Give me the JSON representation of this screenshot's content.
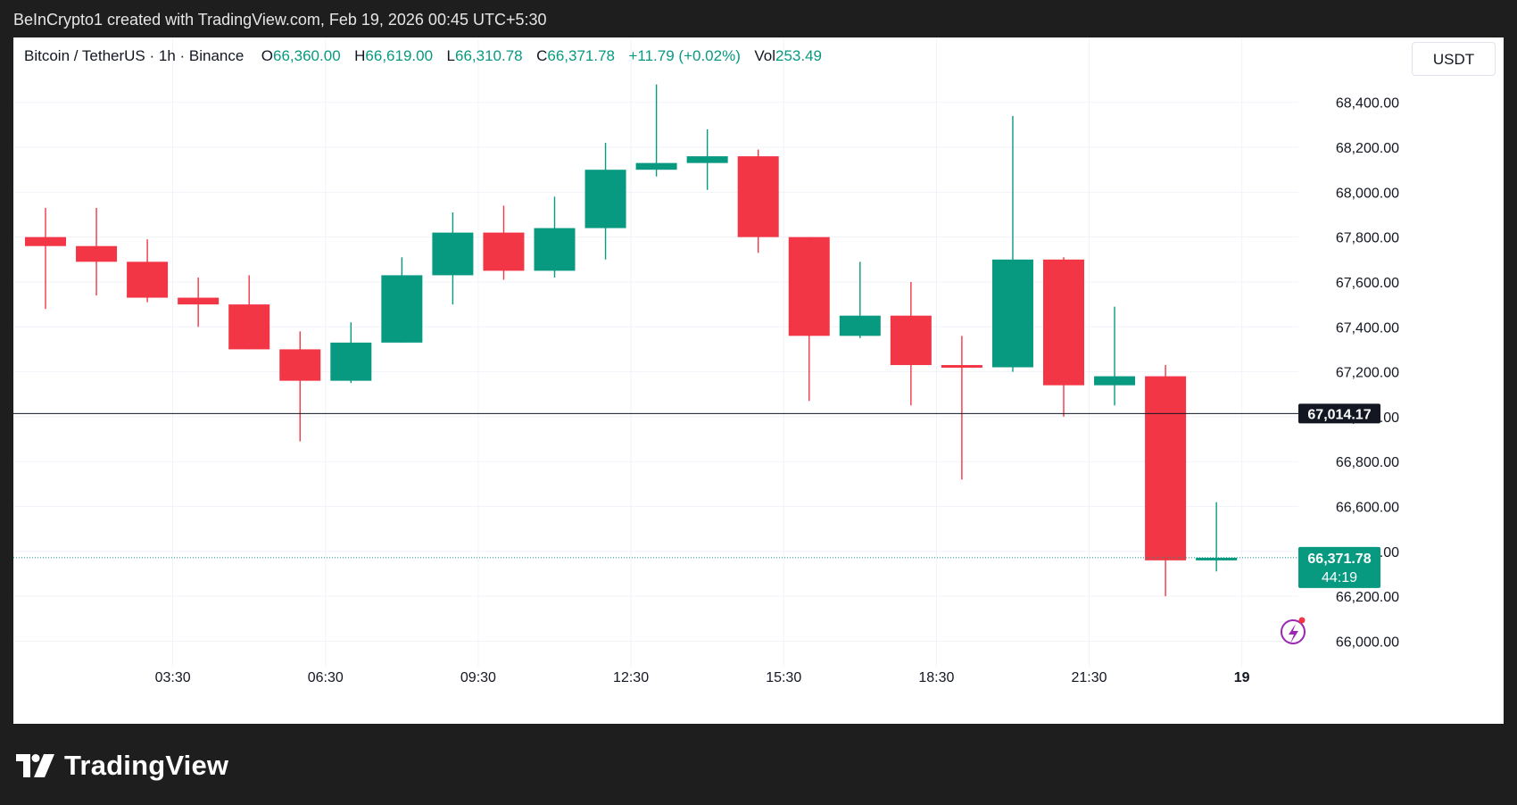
{
  "header": {
    "attribution": "BeInCrypto1 created with TradingView.com, Feb 19, 2026 00:45 UTC+5:30"
  },
  "legend": {
    "symbol": "Bitcoin / TetherUS · 1h · Binance",
    "open_label": "O",
    "open": "66,360.00",
    "high_label": "H",
    "high": "66,619.00",
    "low_label": "L",
    "low": "66,310.78",
    "close_label": "C",
    "close": "66,371.78",
    "change": "+11.79 (+0.02%)",
    "vol_label": "Vol",
    "vol": "253.49"
  },
  "currency": "USDT",
  "footer": {
    "brand": "TradingView"
  },
  "colors": {
    "up": "#089981",
    "down": "#f23645",
    "price_line": "#131722",
    "current_label": "#089981"
  },
  "chart_data": {
    "type": "candlestick",
    "interval": "1h",
    "ylim": [
      65950,
      68550
    ],
    "y_ticks": [
      {
        "value": 66000,
        "label": "66,000.00"
      },
      {
        "value": 66200,
        "label": "66,200.00"
      },
      {
        "value": 66400,
        "label": "66,400.00"
      },
      {
        "value": 66600,
        "label": "66,600.00"
      },
      {
        "value": 66800,
        "label": "66,800.00"
      },
      {
        "value": 67000,
        "label": "67,000.00"
      },
      {
        "value": 67200,
        "label": "67,200.00"
      },
      {
        "value": 67400,
        "label": "67,400.00"
      },
      {
        "value": 67600,
        "label": "67,600.00"
      },
      {
        "value": 67800,
        "label": "67,800.00"
      },
      {
        "value": 68000,
        "label": "68,000.00"
      },
      {
        "value": 68200,
        "label": "68,200.00"
      },
      {
        "value": 68400,
        "label": "68,400.00"
      }
    ],
    "x_ticks": [
      {
        "index": 2.5,
        "label": "03:30"
      },
      {
        "index": 5.5,
        "label": "06:30"
      },
      {
        "index": 8.5,
        "label": "09:30"
      },
      {
        "index": 11.5,
        "label": "12:30"
      },
      {
        "index": 14.5,
        "label": "15:30"
      },
      {
        "index": 17.5,
        "label": "18:30"
      },
      {
        "index": 20.5,
        "label": "21:30"
      },
      {
        "index": 23.5,
        "label": "19"
      }
    ],
    "candles": [
      {
        "o": 67800,
        "h": 67930,
        "l": 67480,
        "c": 67760
      },
      {
        "o": 67760,
        "h": 67930,
        "l": 67540,
        "c": 67690
      },
      {
        "o": 67690,
        "h": 67790,
        "l": 67510,
        "c": 67530
      },
      {
        "o": 67530,
        "h": 67620,
        "l": 67400,
        "c": 67500
      },
      {
        "o": 67500,
        "h": 67630,
        "l": 67300,
        "c": 67300
      },
      {
        "o": 67300,
        "h": 67380,
        "l": 66890,
        "c": 67160
      },
      {
        "o": 67160,
        "h": 67420,
        "l": 67150,
        "c": 67330
      },
      {
        "o": 67330,
        "h": 67710,
        "l": 67330,
        "c": 67630
      },
      {
        "o": 67630,
        "h": 67910,
        "l": 67500,
        "c": 67820
      },
      {
        "o": 67820,
        "h": 67940,
        "l": 67610,
        "c": 67650
      },
      {
        "o": 67650,
        "h": 67980,
        "l": 67620,
        "c": 67840
      },
      {
        "o": 67840,
        "h": 68220,
        "l": 67700,
        "c": 68100
      },
      {
        "o": 68100,
        "h": 68480,
        "l": 68070,
        "c": 68130
      },
      {
        "o": 68130,
        "h": 68280,
        "l": 68010,
        "c": 68160
      },
      {
        "o": 68160,
        "h": 68190,
        "l": 67730,
        "c": 67800
      },
      {
        "o": 67800,
        "h": 67800,
        "l": 67070,
        "c": 67360
      },
      {
        "o": 67360,
        "h": 67690,
        "l": 67350,
        "c": 67450
      },
      {
        "o": 67450,
        "h": 67600,
        "l": 67050,
        "c": 67230
      },
      {
        "o": 67230,
        "h": 67360,
        "l": 66720,
        "c": 67220
      },
      {
        "o": 67220,
        "h": 68340,
        "l": 67200,
        "c": 67700
      },
      {
        "o": 67700,
        "h": 67710,
        "l": 67000,
        "c": 67140
      },
      {
        "o": 67140,
        "h": 67490,
        "l": 67050,
        "c": 67180
      },
      {
        "o": 67180,
        "h": 67230,
        "l": 66200,
        "c": 66360
      },
      {
        "o": 66360,
        "h": 66619,
        "l": 66310.78,
        "c": 66371.78
      }
    ],
    "price_line": {
      "value": 67014.17,
      "label": "67,014.17"
    },
    "current_price": {
      "value": 66371.78,
      "label": "66,371.78",
      "countdown": "44:19"
    }
  }
}
